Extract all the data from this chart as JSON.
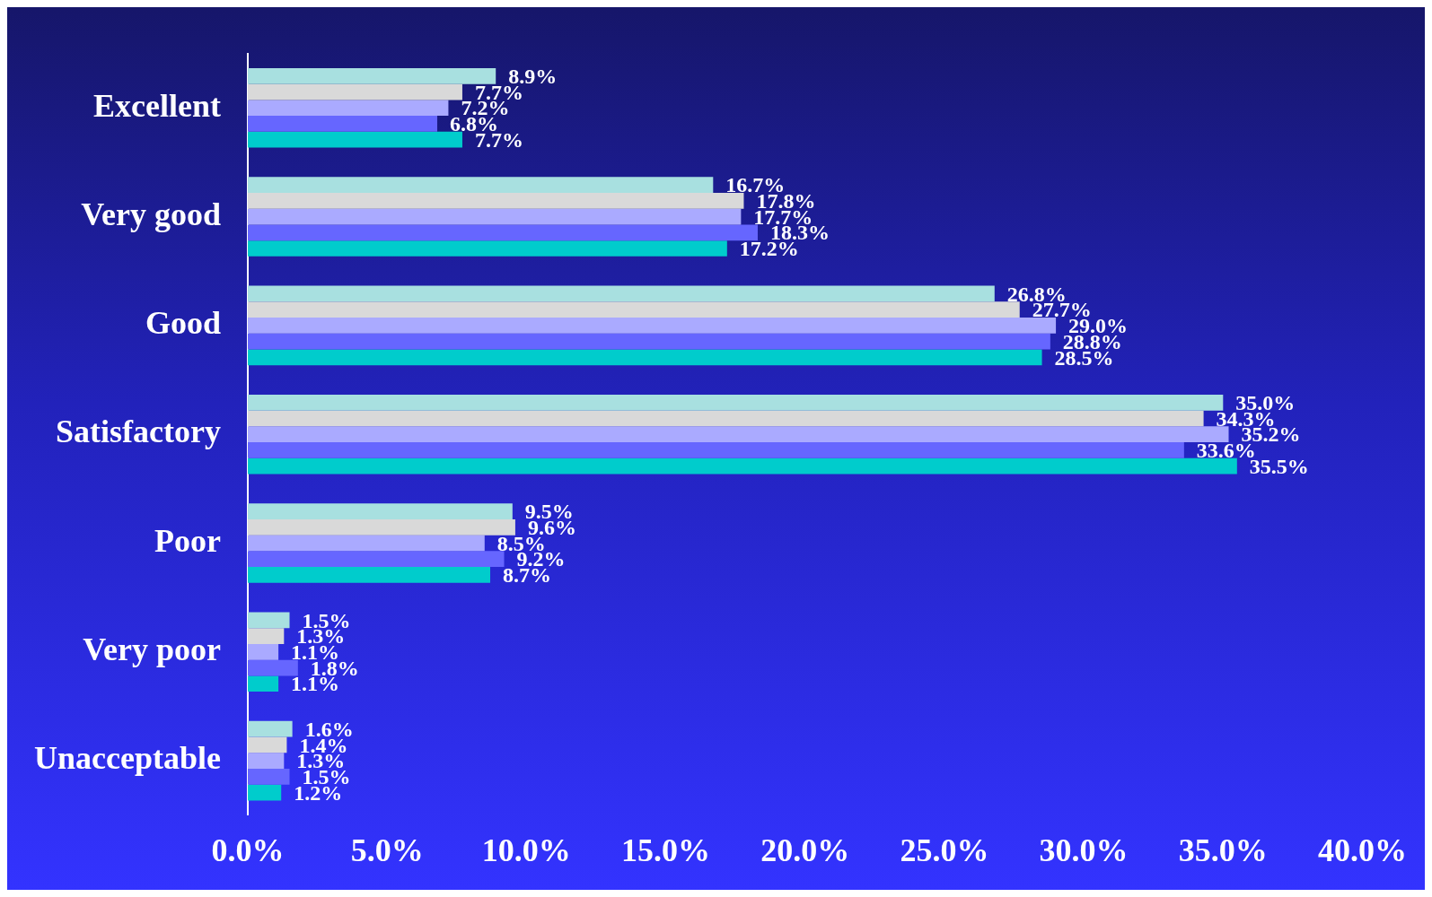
{
  "chart_data": {
    "type": "bar",
    "orientation": "horizontal",
    "categories": [
      "Excellent",
      "Very good",
      "Good",
      "Satisfactory",
      "Poor",
      "Very poor",
      "Unacceptable"
    ],
    "series": [
      {
        "color": "#a8e0e0",
        "values": [
          8.9,
          16.7,
          26.8,
          35.0,
          9.5,
          1.5,
          1.6
        ],
        "value_labels": [
          "8.9%",
          "16.7%",
          "26.8%",
          "35.0%",
          "9.5%",
          "1.5%",
          "1.6%"
        ]
      },
      {
        "color": "#d9d9d9",
        "values": [
          7.7,
          17.8,
          27.7,
          34.3,
          9.6,
          1.3,
          1.4
        ],
        "value_labels": [
          "7.7%",
          "17.8%",
          "27.7%",
          "34.3%",
          "9.6%",
          "1.3%",
          "1.4%"
        ]
      },
      {
        "color": "#aaaaff",
        "values": [
          7.2,
          17.7,
          29.0,
          35.2,
          8.5,
          1.1,
          1.3
        ],
        "value_labels": [
          "7.2%",
          "17.7%",
          "29.0%",
          "35.2%",
          "8.5%",
          "1.1%",
          "1.3%"
        ]
      },
      {
        "color": "#6666ff",
        "values": [
          6.8,
          18.3,
          28.8,
          33.6,
          9.2,
          1.8,
          1.5
        ],
        "value_labels": [
          "6.8%",
          "18.3%",
          "28.8%",
          "33.6%",
          "9.2%",
          "1.8%",
          "1.5%"
        ]
      },
      {
        "color": "#00cccc",
        "values": [
          7.7,
          17.2,
          28.5,
          35.5,
          8.7,
          1.1,
          1.2
        ],
        "value_labels": [
          "7.7%",
          "17.2%",
          "28.5%",
          "35.5%",
          "8.7%",
          "1.1%",
          "1.2%"
        ]
      }
    ],
    "xlim": [
      0,
      40
    ],
    "xticks": [
      {
        "value": 0,
        "label": "0.0%"
      },
      {
        "value": 5,
        "label": "5.0%"
      },
      {
        "value": 10,
        "label": "10.0%"
      },
      {
        "value": 15,
        "label": "15.0%"
      },
      {
        "value": 20,
        "label": "20.0%"
      },
      {
        "value": 25,
        "label": "25.0%"
      },
      {
        "value": 30,
        "label": "30.0%"
      },
      {
        "value": 35,
        "label": "35.0%"
      },
      {
        "value": 40,
        "label": "40.0%"
      }
    ],
    "grid": false,
    "legend": false
  }
}
